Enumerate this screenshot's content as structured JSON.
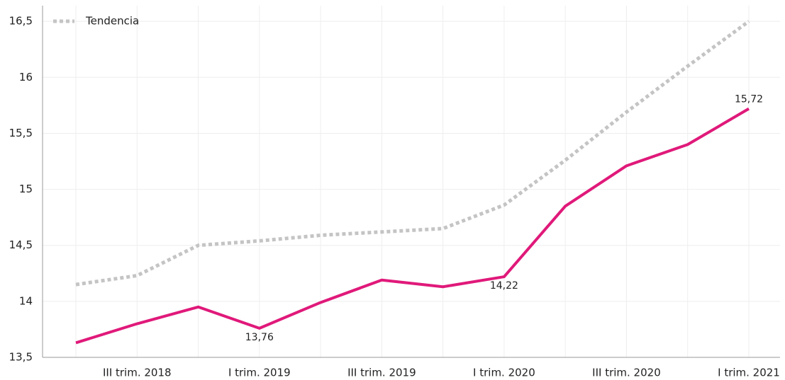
{
  "chart_data": {
    "type": "line",
    "categories": [
      null,
      "III trim. 2018",
      null,
      "I trim. 2019",
      null,
      "III trim. 2019",
      null,
      "I trim. 2020",
      null,
      "III trim. 2020",
      null,
      "I trim. 2021"
    ],
    "series": [
      {
        "color": "#e0197a",
        "values": [
          13.63,
          13.8,
          13.95,
          13.76,
          13.99,
          14.19,
          14.13,
          14.22,
          14.85,
          15.21,
          15.4,
          15.72
        ],
        "value_labels": [
          null,
          null,
          null,
          "13,76",
          null,
          null,
          null,
          "14,22",
          null,
          null,
          null,
          "15,72"
        ]
      },
      {
        "name": "Tendencia",
        "color": "#c4c4c4",
        "dashed": true,
        "values": [
          14.15,
          14.23,
          14.5,
          14.54,
          14.59,
          14.62,
          14.65,
          14.86,
          15.26,
          15.69,
          16.1,
          16.5
        ]
      }
    ],
    "ylim": [
      13.5,
      16.64
    ],
    "yticks": [
      {
        "value": 13.5,
        "label": "13,5"
      },
      14,
      {
        "value": 14.5,
        "label": "14,5"
      },
      15,
      {
        "value": 15.5,
        "label": "15,5"
      },
      16,
      {
        "value": 16.5,
        "label": "16,5"
      }
    ],
    "grid": true,
    "legend": "top-left"
  }
}
